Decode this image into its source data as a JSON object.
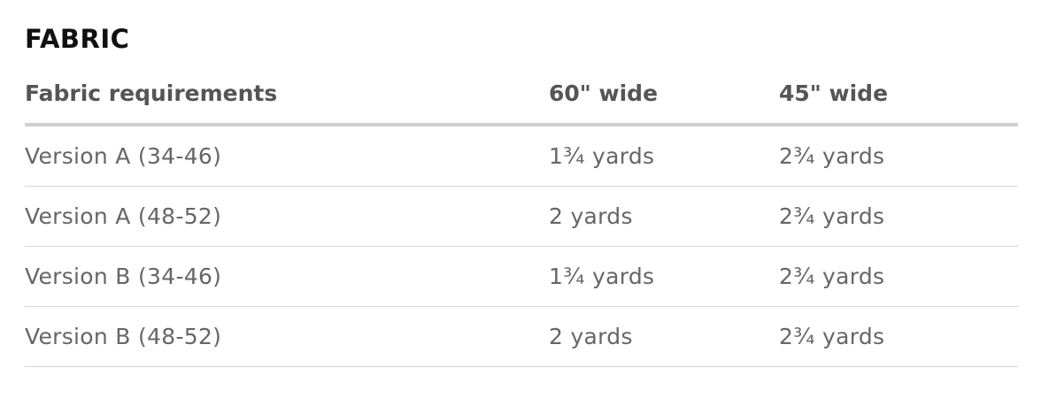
{
  "section_title": "FABRIC",
  "table": {
    "headers": [
      "Fabric requirements",
      "60\" wide",
      "45\" wide"
    ],
    "rows": [
      [
        "Version A (34-46)",
        "1¾ yards",
        "2¾ yards"
      ],
      [
        "Version A (48-52)",
        "2 yards",
        "2¾ yards"
      ],
      [
        "Version B (34-46)",
        "1¾ yards",
        "2¾ yards"
      ],
      [
        "Version B (48-52)",
        "2 yards",
        "2¾ yards"
      ]
    ]
  }
}
